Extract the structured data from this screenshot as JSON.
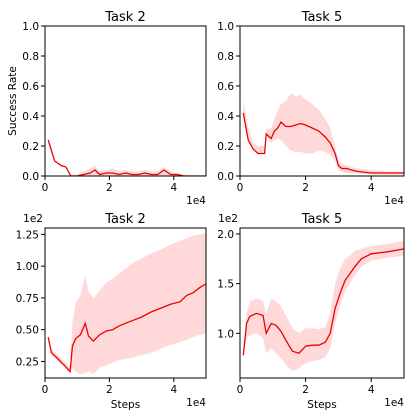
{
  "chart_data": [
    {
      "type": "line",
      "title": "Task 2",
      "ylabel": "Success Rate",
      "xlabel": "",
      "x_offset_label": "1e4",
      "y_offset_label": "",
      "xlim": [
        0,
        50000
      ],
      "ylim": [
        0,
        1.0
      ],
      "xticks": [
        0,
        20000,
        40000
      ],
      "xtick_labels": [
        "0",
        "2",
        "4"
      ],
      "yticks": [
        0.0,
        0.2,
        0.4,
        0.6,
        0.8,
        1.0
      ],
      "ytick_labels": [
        "0.0",
        "0.2",
        "0.4",
        "0.6",
        "0.8",
        "1.0"
      ],
      "series": [
        {
          "color": "#ee0000",
          "band_color": "#ffcccc",
          "x": [
            1000,
            2000,
            3000,
            5000,
            6500,
            8000,
            10000,
            12000,
            14000,
            15500,
            17000,
            19000,
            21000,
            23000,
            25000,
            27000,
            29000,
            31000,
            33000,
            35000,
            37000,
            39000,
            41000,
            43000,
            45000,
            47000,
            50000
          ],
          "y": [
            0.24,
            0.17,
            0.1,
            0.07,
            0.06,
            0.0,
            0.0,
            0.01,
            0.02,
            0.04,
            0.01,
            0.02,
            0.02,
            0.01,
            0.02,
            0.01,
            0.01,
            0.02,
            0.01,
            0.01,
            0.04,
            0.01,
            0.01,
            0.0,
            0.0,
            0.0,
            0.0
          ],
          "lower": [
            0.24,
            0.17,
            0.1,
            0.07,
            0.06,
            0.0,
            0.0,
            0.0,
            0.0,
            0.0,
            0.0,
            0.0,
            0.0,
            0.0,
            0.0,
            0.0,
            0.0,
            0.0,
            0.0,
            0.0,
            0.0,
            0.0,
            0.0,
            0.0,
            0.0,
            0.0,
            0.0
          ],
          "upper": [
            0.24,
            0.17,
            0.1,
            0.07,
            0.06,
            0.01,
            0.01,
            0.03,
            0.05,
            0.07,
            0.03,
            0.04,
            0.05,
            0.03,
            0.04,
            0.03,
            0.03,
            0.04,
            0.03,
            0.03,
            0.06,
            0.03,
            0.02,
            0.01,
            0.0,
            0.0,
            0.0
          ]
        }
      ]
    },
    {
      "type": "line",
      "title": "Task 5",
      "ylabel": "",
      "xlabel": "",
      "x_offset_label": "1e4",
      "y_offset_label": "",
      "xlim": [
        0,
        50000
      ],
      "ylim": [
        0,
        1.0
      ],
      "xticks": [
        0,
        20000,
        40000
      ],
      "xtick_labels": [
        "0",
        "2",
        "4"
      ],
      "yticks": [
        0.0,
        0.2,
        0.4,
        0.6,
        0.8,
        1.0
      ],
      "ytick_labels": [
        "0.0",
        "0.2",
        "0.4",
        "0.6",
        "0.8",
        "1.0"
      ],
      "series": [
        {
          "color": "#ee0000",
          "band_color": "#ffcccc",
          "x": [
            1000,
            2500,
            4000,
            5500,
            7500,
            8000,
            9500,
            10500,
            11500,
            12500,
            14000,
            15500,
            17000,
            18500,
            20000,
            22000,
            24000,
            26000,
            27500,
            29000,
            30000,
            31000,
            32500,
            34000,
            36000,
            40000,
            45000,
            50000
          ],
          "y": [
            0.42,
            0.24,
            0.18,
            0.15,
            0.15,
            0.28,
            0.25,
            0.3,
            0.32,
            0.36,
            0.33,
            0.33,
            0.34,
            0.35,
            0.34,
            0.32,
            0.3,
            0.26,
            0.22,
            0.15,
            0.07,
            0.05,
            0.05,
            0.04,
            0.03,
            0.02,
            0.02,
            0.02
          ],
          "lower": [
            0.42,
            0.24,
            0.18,
            0.15,
            0.15,
            0.26,
            0.22,
            0.24,
            0.25,
            0.24,
            0.2,
            0.17,
            0.16,
            0.16,
            0.15,
            0.15,
            0.17,
            0.16,
            0.14,
            0.1,
            0.04,
            0.03,
            0.02,
            0.02,
            0.02,
            0.01,
            0.01,
            0.01
          ],
          "upper": [
            0.5,
            0.33,
            0.22,
            0.2,
            0.2,
            0.31,
            0.32,
            0.38,
            0.44,
            0.48,
            0.5,
            0.55,
            0.53,
            0.54,
            0.51,
            0.48,
            0.44,
            0.38,
            0.32,
            0.2,
            0.11,
            0.08,
            0.07,
            0.06,
            0.05,
            0.04,
            0.03,
            0.03
          ]
        }
      ]
    },
    {
      "type": "line",
      "title": "Task 2",
      "ylabel": "",
      "xlabel": "Steps",
      "x_offset_label": "1e4",
      "y_offset_label": "1e2",
      "xlim": [
        0,
        50000
      ],
      "ylim": [
        0.12,
        1.3
      ],
      "xticks": [
        0,
        20000,
        40000
      ],
      "xtick_labels": [
        "0",
        "2",
        "4"
      ],
      "yticks": [
        0.25,
        0.5,
        0.75,
        1.0,
        1.25
      ],
      "ytick_labels": [
        "0.25",
        "0.50",
        "0.75",
        "1.00",
        "1.25"
      ],
      "series": [
        {
          "color": "#ee0000",
          "band_color": "#ffcccc",
          "x": [
            1000,
            2000,
            4000,
            6000,
            7800,
            8500,
            9500,
            11000,
            12500,
            13500,
            15000,
            17000,
            19000,
            21000,
            23000,
            25000,
            27000,
            30000,
            33000,
            36000,
            39000,
            42000,
            44000,
            46000,
            48000,
            50000
          ],
          "y": [
            0.44,
            0.32,
            0.27,
            0.22,
            0.17,
            0.37,
            0.43,
            0.46,
            0.55,
            0.45,
            0.41,
            0.46,
            0.49,
            0.5,
            0.53,
            0.55,
            0.57,
            0.6,
            0.64,
            0.67,
            0.7,
            0.72,
            0.77,
            0.79,
            0.83,
            0.86
          ],
          "lower": [
            0.42,
            0.3,
            0.25,
            0.21,
            0.16,
            0.2,
            0.17,
            0.15,
            0.16,
            0.17,
            0.15,
            0.2,
            0.22,
            0.24,
            0.26,
            0.27,
            0.28,
            0.3,
            0.32,
            0.35,
            0.38,
            0.4,
            0.42,
            0.44,
            0.46,
            0.47
          ],
          "upper": [
            0.46,
            0.35,
            0.3,
            0.25,
            0.2,
            0.55,
            0.71,
            0.77,
            0.93,
            0.8,
            0.75,
            0.81,
            0.87,
            0.9,
            0.94,
            0.98,
            1.02,
            1.06,
            1.1,
            1.13,
            1.17,
            1.2,
            1.22,
            1.24,
            1.25,
            1.26
          ]
        }
      ]
    },
    {
      "type": "line",
      "title": "Task 5",
      "ylabel": "",
      "xlabel": "Steps",
      "x_offset_label": "1e4",
      "y_offset_label": "1e2",
      "xlim": [
        0,
        50000
      ],
      "ylim": [
        0.55,
        2.06
      ],
      "xticks": [
        0,
        20000,
        40000
      ],
      "xtick_labels": [
        "0",
        "2",
        "4"
      ],
      "yticks": [
        1.0,
        1.5,
        2.0
      ],
      "ytick_labels": [
        "1.0",
        "1.5",
        "2.0"
      ],
      "series": [
        {
          "color": "#ee0000",
          "band_color": "#ffcccc",
          "x": [
            1000,
            2000,
            3000,
            5000,
            7000,
            8000,
            9500,
            11000,
            12500,
            14000,
            16000,
            18000,
            20000,
            22000,
            24000,
            26000,
            27500,
            29000,
            30500,
            32000,
            33500,
            35000,
            37000,
            40000,
            45000,
            50000
          ],
          "y": [
            0.78,
            1.1,
            1.17,
            1.2,
            1.18,
            1.0,
            1.1,
            1.08,
            1.02,
            0.93,
            0.82,
            0.8,
            0.87,
            0.88,
            0.88,
            0.91,
            1.0,
            1.25,
            1.4,
            1.53,
            1.6,
            1.67,
            1.75,
            1.8,
            1.82,
            1.85
          ],
          "lower": [
            0.75,
            0.95,
            0.98,
            1.0,
            0.95,
            0.8,
            0.85,
            0.8,
            0.75,
            0.68,
            0.62,
            0.65,
            0.7,
            0.72,
            0.73,
            0.76,
            0.85,
            1.1,
            1.28,
            1.42,
            1.5,
            1.58,
            1.67,
            1.73,
            1.76,
            1.78
          ],
          "upper": [
            0.8,
            1.2,
            1.32,
            1.35,
            1.33,
            1.2,
            1.35,
            1.32,
            1.27,
            1.18,
            1.05,
            1.0,
            1.05,
            1.05,
            1.04,
            1.06,
            1.2,
            1.5,
            1.65,
            1.75,
            1.78,
            1.83,
            1.85,
            1.88,
            1.9,
            1.93
          ]
        }
      ]
    }
  ]
}
